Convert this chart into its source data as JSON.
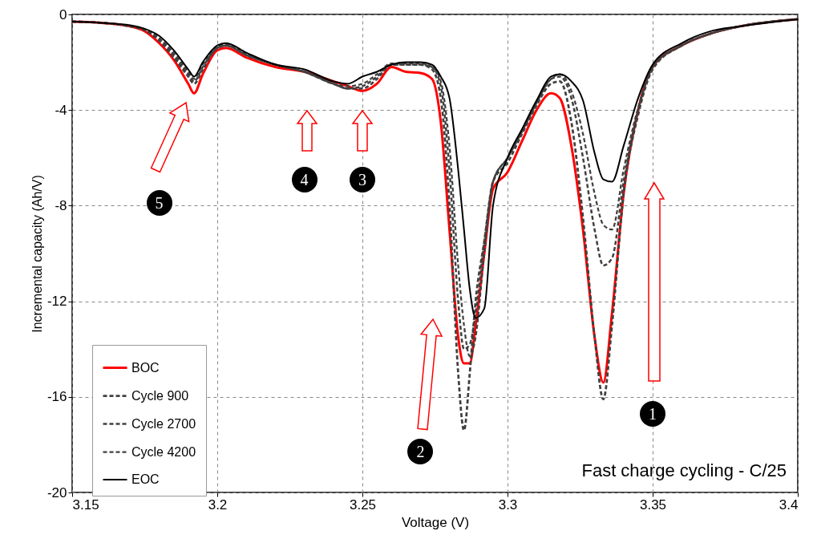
{
  "chart_data": {
    "type": "line",
    "xlabel": "Voltage (V)",
    "ylabel": "Incremental capacity (Ah/V)",
    "x": [
      3.15,
      3.16,
      3.17,
      3.175,
      3.18,
      3.185,
      3.19,
      3.192,
      3.195,
      3.2,
      3.203,
      3.21,
      3.22,
      3.23,
      3.24,
      3.245,
      3.25,
      3.255,
      3.26,
      3.265,
      3.27,
      3.274,
      3.277,
      3.28,
      3.283,
      3.285,
      3.287,
      3.289,
      3.292,
      3.295,
      3.3,
      3.305,
      3.31,
      3.315,
      3.318,
      3.322,
      3.326,
      3.33,
      3.333,
      3.336,
      3.34,
      3.345,
      3.35,
      3.36,
      3.37,
      3.38,
      3.4
    ],
    "series": [
      {
        "name": "BOC",
        "color": "#ff0000",
        "line_style": "solid",
        "values": [
          -0.3,
          -0.35,
          -0.5,
          -0.7,
          -1.2,
          -1.9,
          -2.9,
          -3.3,
          -2.5,
          -1.5,
          -1.4,
          -1.8,
          -2.2,
          -2.4,
          -2.8,
          -3.0,
          -3.2,
          -2.9,
          -2.2,
          -2.4,
          -2.45,
          -2.7,
          -4.5,
          -9.0,
          -13.5,
          -14.6,
          -14.6,
          -13.0,
          -10.0,
          -7.3,
          -6.6,
          -5.3,
          -4.0,
          -3.3,
          -3.5,
          -5.5,
          -9.0,
          -13.5,
          -15.4,
          -12.5,
          -7.5,
          -4.0,
          -2.2,
          -1.3,
          -0.8,
          -0.5,
          -0.2
        ]
      },
      {
        "name": "Cycle 900",
        "color": "#404040",
        "line_style": "dashed",
        "values": [
          -0.3,
          -0.35,
          -0.5,
          -0.65,
          -1.1,
          -1.8,
          -2.6,
          -2.9,
          -2.3,
          -1.4,
          -1.3,
          -1.7,
          -2.1,
          -2.4,
          -2.9,
          -3.1,
          -3.1,
          -2.7,
          -2.1,
          -2.1,
          -2.1,
          -2.3,
          -3.5,
          -8.0,
          -15.0,
          -17.4,
          -15.0,
          -12.0,
          -9.5,
          -7.0,
          -6.2,
          -5.0,
          -3.8,
          -2.9,
          -2.8,
          -4.5,
          -8.5,
          -13.5,
          -16.1,
          -13.0,
          -7.5,
          -4.2,
          -2.3,
          -1.3,
          -0.8,
          -0.5,
          -0.2
        ]
      },
      {
        "name": "Cycle 2700",
        "color": "#404040",
        "line_style": "dashed",
        "values": [
          -0.3,
          -0.35,
          -0.5,
          -0.65,
          -1.0,
          -1.7,
          -2.5,
          -2.8,
          -2.2,
          -1.4,
          -1.3,
          -1.7,
          -2.1,
          -2.4,
          -2.9,
          -3.1,
          -3.0,
          -2.6,
          -2.1,
          -2.1,
          -2.1,
          -2.2,
          -3.0,
          -6.5,
          -12.0,
          -14.0,
          -13.8,
          -12.5,
          -9.5,
          -7.0,
          -6.0,
          -4.9,
          -3.7,
          -2.7,
          -2.6,
          -3.5,
          -6.0,
          -9.0,
          -10.5,
          -10.2,
          -7.0,
          -4.0,
          -2.2,
          -1.3,
          -0.8,
          -0.5,
          -0.2
        ]
      },
      {
        "name": "Cycle 4200",
        "color": "#404040",
        "line_style": "dashed",
        "values": [
          -0.3,
          -0.35,
          -0.5,
          -0.65,
          -1.0,
          -1.6,
          -2.4,
          -2.7,
          -2.1,
          -1.35,
          -1.25,
          -1.65,
          -2.1,
          -2.4,
          -2.9,
          -3.0,
          -2.9,
          -2.5,
          -2.05,
          -2.05,
          -2.05,
          -2.2,
          -2.8,
          -5.5,
          -10.5,
          -13.0,
          -14.3,
          -13.5,
          -10.0,
          -7.0,
          -6.0,
          -4.9,
          -3.7,
          -2.7,
          -2.5,
          -3.2,
          -5.0,
          -7.5,
          -8.8,
          -9.0,
          -6.5,
          -3.9,
          -2.2,
          -1.3,
          -0.8,
          -0.5,
          -0.2
        ]
      },
      {
        "name": "EOC",
        "color": "#000000",
        "line_style": "solid",
        "values": [
          -0.3,
          -0.35,
          -0.45,
          -0.6,
          -0.9,
          -1.5,
          -2.3,
          -2.6,
          -2.0,
          -1.3,
          -1.2,
          -1.6,
          -2.1,
          -2.3,
          -2.8,
          -2.9,
          -2.6,
          -2.4,
          -2.1,
          -2.0,
          -2.0,
          -2.1,
          -2.6,
          -3.5,
          -6.5,
          -9.0,
          -11.5,
          -12.7,
          -12.3,
          -8.0,
          -6.0,
          -4.8,
          -3.6,
          -2.6,
          -2.5,
          -2.8,
          -3.6,
          -5.8,
          -6.9,
          -7.0,
          -5.5,
          -3.5,
          -2.1,
          -1.2,
          -0.7,
          -0.5,
          -0.2
        ]
      }
    ],
    "xlim": [
      3.15,
      3.4
    ],
    "xticks": [
      3.15,
      3.2,
      3.25,
      3.3,
      3.35,
      3.4
    ],
    "ylim": [
      -20,
      0
    ],
    "yticks": [
      -20,
      -16,
      -12,
      -8,
      -4,
      0
    ],
    "grid": true,
    "legend": "bottom left",
    "annotations": [
      {
        "text": "1",
        "x": 3.35,
        "y": -16.7
      },
      {
        "text": "2",
        "x": 3.27,
        "y": -18.3
      },
      {
        "text": "3",
        "x": 3.25,
        "y": -6.9
      },
      {
        "text": "4",
        "x": 3.23,
        "y": -6.9
      },
      {
        "text": "5",
        "x": 3.18,
        "y": -7.9
      },
      "Fast charge cycling - C/25"
    ]
  }
}
